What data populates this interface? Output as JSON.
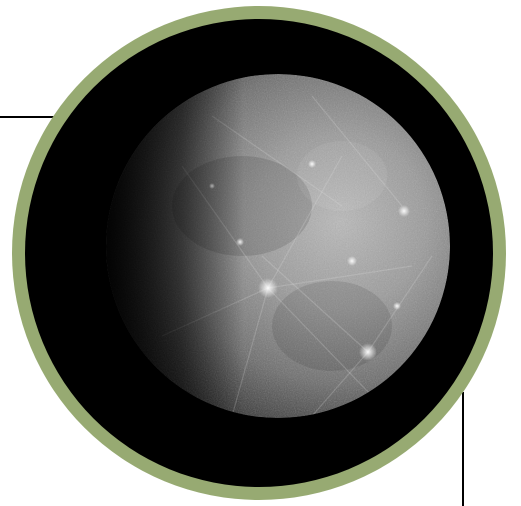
{
  "image": {
    "subject": "planet-photo",
    "frame_color": "#97aa72",
    "background_color": "#000000",
    "callout_line_color": "#000000"
  }
}
